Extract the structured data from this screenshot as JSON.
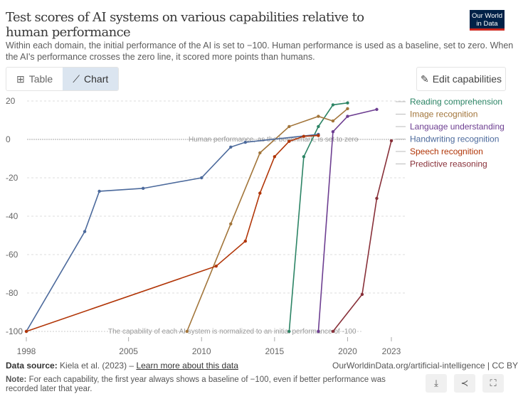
{
  "header": {
    "title": "Test scores of AI systems on various capabilities relative to human performance",
    "subtitle": "Within each domain, the initial performance of the AI is set to −100. Human performance is used as a baseline, set to zero. When the AI's performance crosses the zero line, it scored more points than humans.",
    "logo": "Our World in Data"
  },
  "tabs": [
    {
      "label": "Table",
      "icon": "table-icon"
    },
    {
      "label": "Chart",
      "icon": "line-chart-icon"
    }
  ],
  "edit_label": "Edit capabilities",
  "chart_data": {
    "type": "line",
    "title": "Test scores of AI systems on various capabilities relative to human performance",
    "xlim": [
      1998,
      2023
    ],
    "ylim": [
      -100,
      20
    ],
    "xticks": [
      1998,
      2005,
      2010,
      2015,
      2020,
      2023
    ],
    "yticks": [
      -100,
      -80,
      -60,
      -40,
      -20,
      0,
      20
    ],
    "ytick_labels": [
      "-100",
      "-80",
      "-60",
      "-40",
      "-20",
      "0",
      "20"
    ],
    "annotations": {
      "zero": "Human performance, as the benchmark, is set to zero",
      "baseline": "The capability of each AI system is normalized to an initial performance of -100"
    },
    "legend_placement": "right",
    "series": [
      {
        "name": "Reading comprehension",
        "color": "#2c8465",
        "x": [
          2016,
          2017,
          2018,
          2019,
          2020
        ],
        "y": [
          -100,
          -9,
          6.7,
          18,
          19
        ]
      },
      {
        "name": "Image recognition",
        "color": "#a2753a",
        "x": [
          2009,
          2012,
          2014,
          2016,
          2018,
          2019,
          2020
        ],
        "y": [
          -100,
          -44,
          -7,
          6.7,
          12,
          9.6,
          16
        ]
      },
      {
        "name": "Language understanding",
        "color": "#6d3e91",
        "x": [
          2018,
          2019,
          2020,
          2022
        ],
        "y": [
          -100,
          4,
          12,
          15.6
        ]
      },
      {
        "name": "Handwriting recognition",
        "color": "#4c6a9c",
        "x": [
          1998,
          2002,
          2003,
          2006,
          2010,
          2012,
          2013,
          2018
        ],
        "y": [
          -100,
          -48,
          -27,
          -25.5,
          -20,
          -4,
          -1.5,
          2.6
        ]
      },
      {
        "name": "Speech recognition",
        "color": "#b13507",
        "x": [
          1998,
          2011,
          2013,
          2014,
          2015,
          2016,
          2017,
          2018
        ],
        "y": [
          -100,
          -66,
          -53,
          -28,
          -9,
          -1,
          1.6,
          2
        ]
      },
      {
        "name": "Predictive reasoning",
        "color": "#883039",
        "x": [
          2019,
          2021,
          2022,
          2023
        ],
        "y": [
          -100,
          -80.7,
          -30.7,
          -0.7
        ]
      }
    ]
  },
  "footer": {
    "source_label": "Data source:",
    "source": "Kiela et al. (2023) –",
    "learn_more": "Learn more about this data",
    "owid": "OurWorldinData.org/artificial-intelligence | CC BY",
    "note_label": "Note:",
    "note": "For each capability, the first year always shows a baseline of −100, even if better performance was recorded later that year."
  },
  "actions": [
    "download-icon",
    "share-icon",
    "fullscreen-icon"
  ]
}
